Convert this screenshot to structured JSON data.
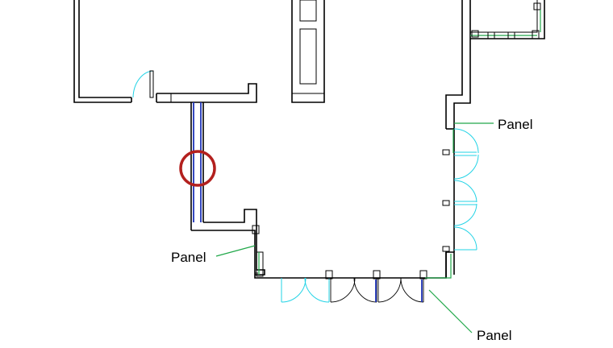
{
  "labels": {
    "panel_right": "Panel",
    "panel_left": "Panel",
    "panel_bottom": "Panel"
  },
  "colors": {
    "wall": "#000000",
    "door_swing": "#22d3e6",
    "panel_leader": "#21a84a",
    "duct": "#1e33b8",
    "highlight_circle": "#b3201e"
  }
}
